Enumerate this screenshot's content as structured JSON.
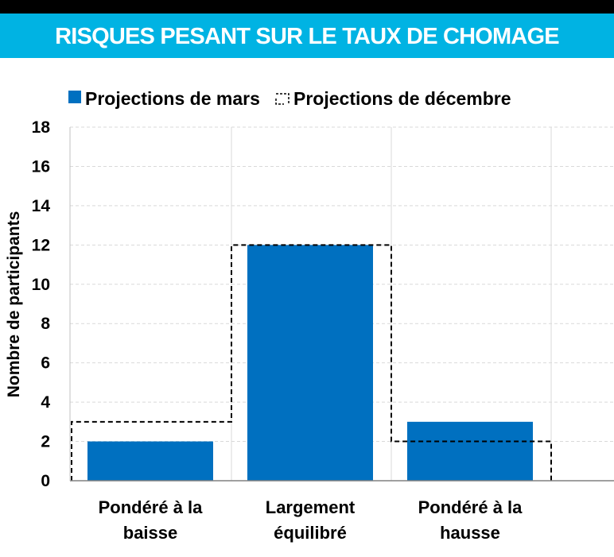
{
  "header": {
    "title": "RISQUES PESANT SUR LE TAUX DE CHOMAGE"
  },
  "colors": {
    "band": "#00b3e3",
    "bar": "#0070c0",
    "outline": "#000000",
    "grid": "#d9d9d9"
  },
  "chart_data": {
    "type": "bar",
    "title": "RISQUES PESANT SUR LE TAUX DE CHOMAGE",
    "ylabel": "Nombre de participants",
    "xlabel": "",
    "ylim": [
      0,
      18
    ],
    "yticks": [
      0,
      2,
      4,
      6,
      8,
      10,
      12,
      14,
      16,
      18
    ],
    "grid": true,
    "legend_position": "top",
    "categories": [
      {
        "line1": "Pondéré à la",
        "line2": "baisse"
      },
      {
        "line1": "Largement",
        "line2": "équilibré"
      },
      {
        "line1": "Pondéré à la",
        "line2": "hausse"
      }
    ],
    "series": [
      {
        "name": "Projections de mars",
        "style": "filled",
        "values": [
          2,
          12,
          3
        ]
      },
      {
        "name": "Projections de décembre",
        "style": "dashed-outline",
        "values": [
          3,
          12,
          2
        ]
      }
    ]
  }
}
